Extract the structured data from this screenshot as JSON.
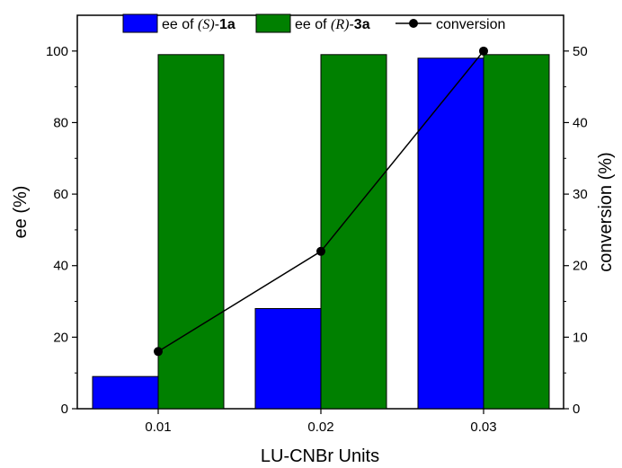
{
  "chart_data": {
    "type": "bar",
    "xlabel": "LU-CNBr Units",
    "ylabel_left": "ee (%)",
    "ylabel_right": "conversion (%)",
    "categories": [
      "0.01",
      "0.02",
      "0.03"
    ],
    "ylim_left": [
      0,
      110
    ],
    "ylim_right": [
      0,
      55
    ],
    "yticks_left": [
      0,
      20,
      40,
      60,
      80,
      100
    ],
    "yticks_right": [
      0,
      10,
      20,
      30,
      40,
      50
    ],
    "grid": false,
    "legend_position": "top",
    "series": [
      {
        "name": "ee of (S)-1a",
        "legend_parts": {
          "prefix": "ee of ",
          "italic": "(S)",
          "dash": "-",
          "bold": "1a"
        },
        "type": "bar",
        "axis": "left",
        "color": "#0000ff",
        "values": [
          9,
          28,
          98
        ]
      },
      {
        "name": "ee of (R)-3a",
        "legend_parts": {
          "prefix": "ee of ",
          "italic": "(R)",
          "dash": "-",
          "bold": "3a"
        },
        "type": "bar",
        "axis": "left",
        "color": "#008000",
        "values": [
          99,
          99,
          99
        ]
      },
      {
        "name": "conversion",
        "type": "line",
        "axis": "right",
        "color": "#000000",
        "values": [
          8,
          22,
          50
        ]
      }
    ]
  }
}
